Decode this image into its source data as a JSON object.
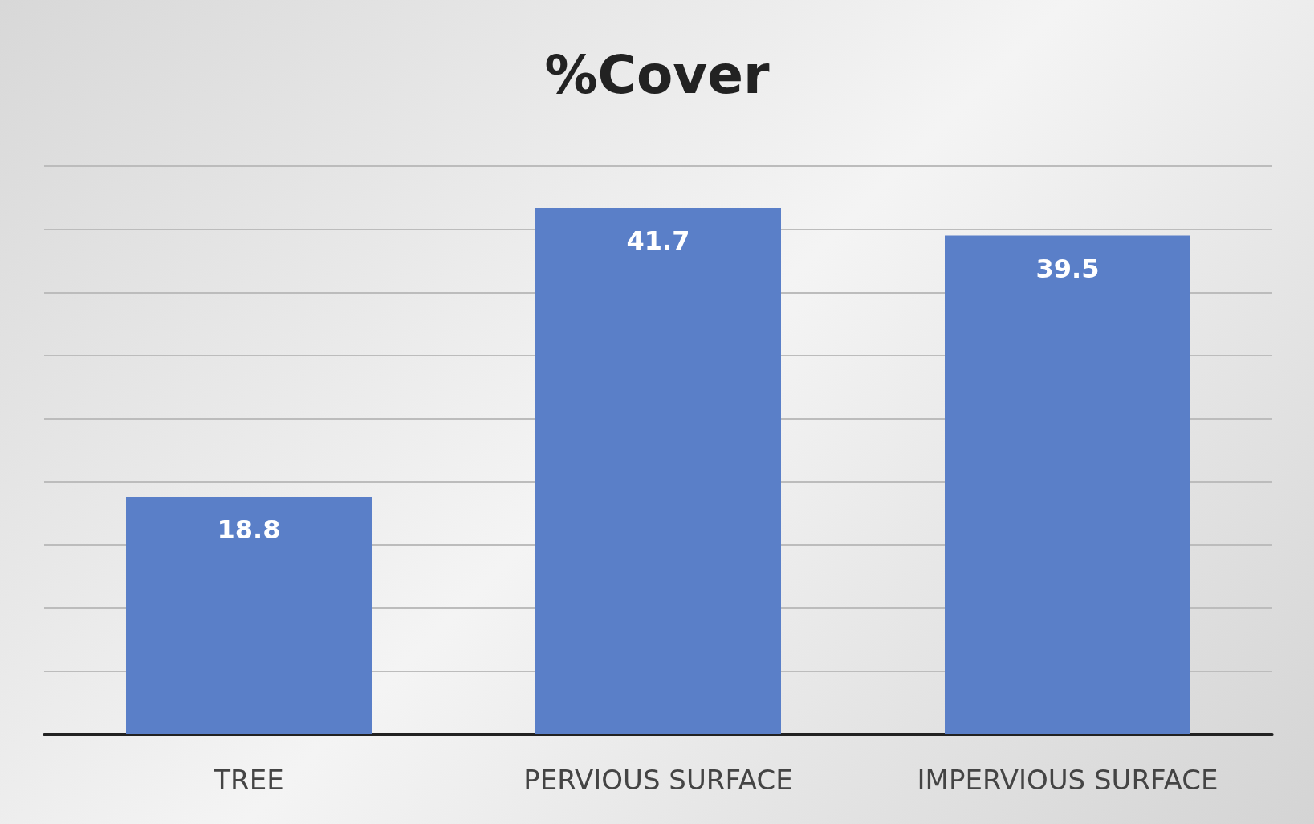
{
  "chart_data": {
    "type": "bar",
    "title": "%Cover",
    "categories": [
      "TREE",
      "PERVIOUS SURFACE",
      "IMPERVIOUS SURFACE"
    ],
    "values": [
      18.8,
      41.7,
      39.5
    ],
    "color": "#5a7fc8",
    "ylim": [
      0,
      45
    ],
    "yticks": [
      {
        "value": 0,
        "label": null
      },
      {
        "value": 5,
        "label": null
      },
      {
        "value": 10,
        "label": null
      },
      {
        "value": 15,
        "label": null
      },
      {
        "value": 20,
        "label": null
      },
      {
        "value": 25,
        "label": null
      },
      {
        "value": 30,
        "label": null
      },
      {
        "value": 35,
        "label": null
      },
      {
        "value": 40,
        "label": null
      },
      {
        "value": 45,
        "label": null
      }
    ],
    "grid": "y",
    "tick_labels": "x",
    "data_labels": true
  }
}
